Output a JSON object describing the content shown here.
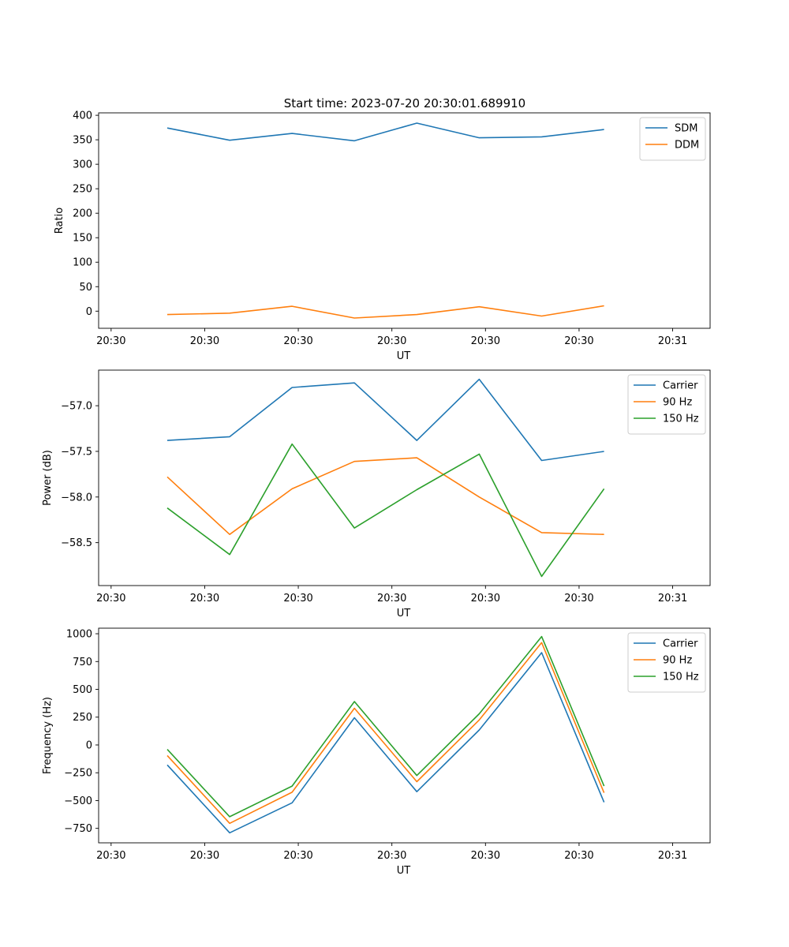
{
  "figure": {
    "title": "Start time: 2023-07-20 20:30:01.689910"
  },
  "chart_data": [
    {
      "type": "line",
      "title": "Start time: 2023-07-20 20:30:01.689910",
      "xlabel": "UT",
      "ylabel": "Ratio",
      "xlim": [
        -0.6,
        9.2
      ],
      "ylim": [
        -35,
        405
      ],
      "xticks": [
        {
          "value": -0.4,
          "label": "20:30"
        },
        {
          "value": 1.1,
          "label": "20:30"
        },
        {
          "value": 2.6,
          "label": "20:30"
        },
        {
          "value": 4.1,
          "label": "20:30"
        },
        {
          "value": 5.6,
          "label": "20:30"
        },
        {
          "value": 7.1,
          "label": "20:30"
        },
        {
          "value": 8.6,
          "label": "20:31"
        }
      ],
      "yticks": [
        0,
        50,
        100,
        150,
        200,
        250,
        300,
        350,
        400
      ],
      "legend": "top-right",
      "x": [
        0.5,
        1.5,
        2.5,
        3.5,
        4.5,
        5.5,
        6.5,
        7.5
      ],
      "series": [
        {
          "name": "SDM",
          "color": "#1f77b4",
          "values": [
            374,
            349,
            363,
            348,
            384,
            354,
            356,
            371
          ]
        },
        {
          "name": "DDM",
          "color": "#ff7f0e",
          "values": [
            -7,
            -4,
            10,
            -14,
            -7,
            9,
            -10,
            11
          ]
        }
      ]
    },
    {
      "type": "line",
      "xlabel": "UT",
      "ylabel": "Power (dB)",
      "xlim": [
        -0.6,
        9.2
      ],
      "ylim": [
        -58.97,
        -56.61
      ],
      "xticks": [
        {
          "value": -0.4,
          "label": "20:30"
        },
        {
          "value": 1.1,
          "label": "20:30"
        },
        {
          "value": 2.6,
          "label": "20:30"
        },
        {
          "value": 4.1,
          "label": "20:30"
        },
        {
          "value": 5.6,
          "label": "20:30"
        },
        {
          "value": 7.1,
          "label": "20:30"
        },
        {
          "value": 8.6,
          "label": "20:31"
        }
      ],
      "yticks": [
        -58.5,
        -58.0,
        -57.5,
        -57.0
      ],
      "ytick_labels": [
        "−58.5",
        "−58.0",
        "−57.5",
        "−57.0"
      ],
      "legend": "top-right",
      "x": [
        0.5,
        1.5,
        2.5,
        3.5,
        4.5,
        5.5,
        6.5,
        7.5
      ],
      "series": [
        {
          "name": "Carrier",
          "color": "#1f77b4",
          "values": [
            -57.38,
            -57.34,
            -56.8,
            -56.75,
            -57.38,
            -56.71,
            -57.6,
            -57.5
          ]
        },
        {
          "name": "90 Hz",
          "color": "#ff7f0e",
          "values": [
            -57.78,
            -58.41,
            -57.91,
            -57.61,
            -57.57,
            -58.0,
            -58.39,
            -58.41
          ]
        },
        {
          "name": "150 Hz",
          "color": "#2ca02c",
          "values": [
            -58.12,
            -58.63,
            -57.42,
            -58.34,
            -57.92,
            -57.53,
            -58.87,
            -57.91
          ]
        }
      ]
    },
    {
      "type": "line",
      "xlabel": "UT",
      "ylabel": "Frequency (Hz)",
      "xlim": [
        -0.6,
        9.2
      ],
      "ylim": [
        -880,
        1050
      ],
      "xticks": [
        {
          "value": -0.4,
          "label": "20:30"
        },
        {
          "value": 1.1,
          "label": "20:30"
        },
        {
          "value": 2.6,
          "label": "20:30"
        },
        {
          "value": 4.1,
          "label": "20:30"
        },
        {
          "value": 5.6,
          "label": "20:30"
        },
        {
          "value": 7.1,
          "label": "20:30"
        },
        {
          "value": 8.6,
          "label": "20:31"
        }
      ],
      "yticks": [
        -750,
        -500,
        -250,
        0,
        250,
        500,
        750,
        1000
      ],
      "ytick_labels": [
        "−750",
        "−500",
        "−250",
        "0",
        "250",
        "500",
        "750",
        "1000"
      ],
      "legend": "top-right",
      "x": [
        0.5,
        1.5,
        2.5,
        3.5,
        4.5,
        5.5,
        6.5,
        7.5
      ],
      "series": [
        {
          "name": "Carrier",
          "color": "#1f77b4",
          "values": [
            -180,
            -790,
            -520,
            245,
            -420,
            135,
            830,
            -515
          ]
        },
        {
          "name": "90 Hz",
          "color": "#ff7f0e",
          "values": [
            -95,
            -705,
            -425,
            330,
            -330,
            225,
            920,
            -430
          ]
        },
        {
          "name": "150 Hz",
          "color": "#2ca02c",
          "values": [
            -40,
            -645,
            -370,
            390,
            -275,
            280,
            975,
            -370
          ]
        }
      ]
    }
  ]
}
